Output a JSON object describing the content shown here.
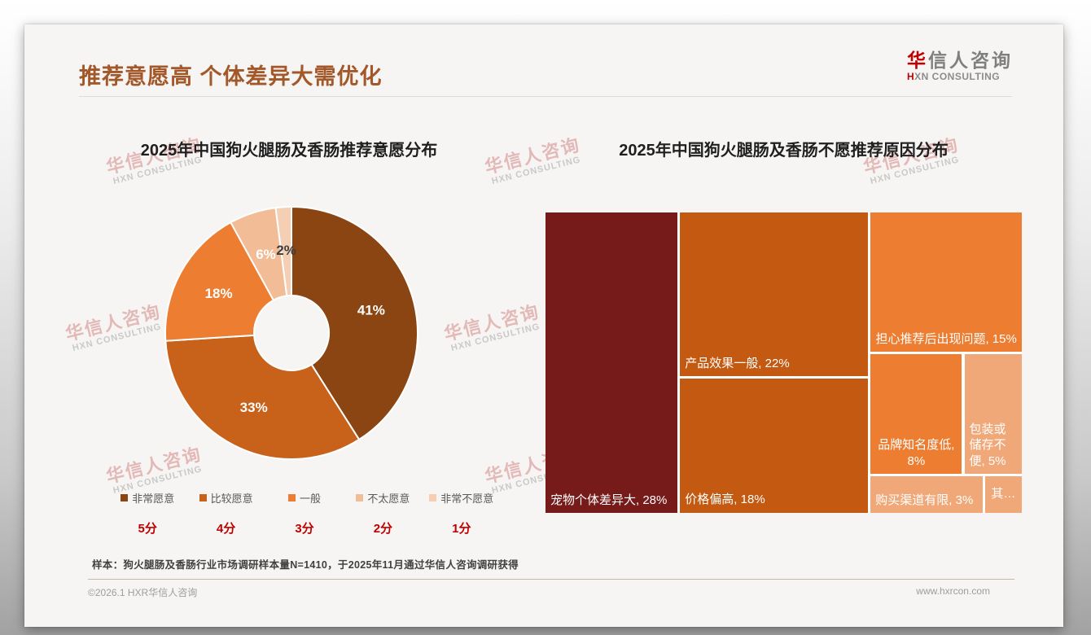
{
  "header": {
    "title": "推荐意愿高 个体差异大需优化",
    "logo": {
      "cn_accent": "华",
      "cn_rest": "信人咨询",
      "en_accent": "H",
      "en_rest": "XN CONSULTING"
    }
  },
  "watermark": {
    "line1": "华信人咨询",
    "line2": "HXN CONSULTING"
  },
  "chart_data": [
    {
      "type": "pie",
      "donut": true,
      "title": "2025年中国狗火腿肠及香肠推荐意愿分布",
      "categories": [
        "非常愿意",
        "比较愿意",
        "一般",
        "不太愿意",
        "非常不愿意"
      ],
      "values": [
        41,
        33,
        18,
        6,
        2
      ],
      "value_labels": [
        "41%",
        "33%",
        "18%",
        "6%",
        "2%"
      ],
      "colors": [
        "#8B4513",
        "#C8611A",
        "#ED7D31",
        "#F2BC96",
        "#F5CFB4"
      ],
      "value_label_colors": [
        "#ffffff",
        "#ffffff",
        "#ffffff",
        "#ffffff",
        "#3d3d3d"
      ],
      "score_labels": [
        "5分",
        "4分",
        "3分",
        "2分",
        "1分"
      ],
      "legend_position": "bottom",
      "start_angle_deg": 0,
      "direction": "clockwise"
    },
    {
      "type": "treemap",
      "title": "2025年中国狗火腿肠及香肠不愿推荐原因分布",
      "items": [
        {
          "name": "宠物个体差异大",
          "value": 28,
          "display": "宠物个体差异大, 28%",
          "color": "#761A1A",
          "halign": "left",
          "valign": "bottom"
        },
        {
          "name": "产品效果一般",
          "value": 22,
          "display": "产品效果一般, 22%",
          "color": "#C45A11",
          "halign": "left",
          "valign": "bottom"
        },
        {
          "name": "价格偏高",
          "value": 18,
          "display": "价格偏高, 18%",
          "color": "#C45A11",
          "halign": "left",
          "valign": "bottom"
        },
        {
          "name": "担心推荐后出现问题",
          "value": 15,
          "display": "担心推荐后出现问题, 15%",
          "color": "#ED7D31",
          "halign": "center",
          "valign": "bottom"
        },
        {
          "name": "品牌知名度低",
          "value": 8,
          "display": "品牌知名度低, 8%",
          "color": "#ED7D31",
          "halign": "center",
          "valign": "bottom"
        },
        {
          "name": "包装或储存不便",
          "value": 5,
          "display": "包装或储存不便, 5%",
          "color": "#F0A878",
          "halign": "left",
          "valign": "bottom"
        },
        {
          "name": "购买渠道有限",
          "value": 3,
          "display": "购买渠道有限, 3%",
          "color": "#F0A878",
          "halign": "left",
          "valign": "bottom"
        },
        {
          "name": "其他",
          "value": 1,
          "display": "其…",
          "color": "#F0A878",
          "halign": "center",
          "valign": "middle"
        }
      ]
    }
  ],
  "footnote": "样本：狗火腿肠及香肠行业市场调研样本量N=1410，于2025年11月通过华信人咨询调研获得",
  "footer": {
    "left": "©2026.1 HXR华信人咨询",
    "right": "www.hxrcon.com"
  }
}
